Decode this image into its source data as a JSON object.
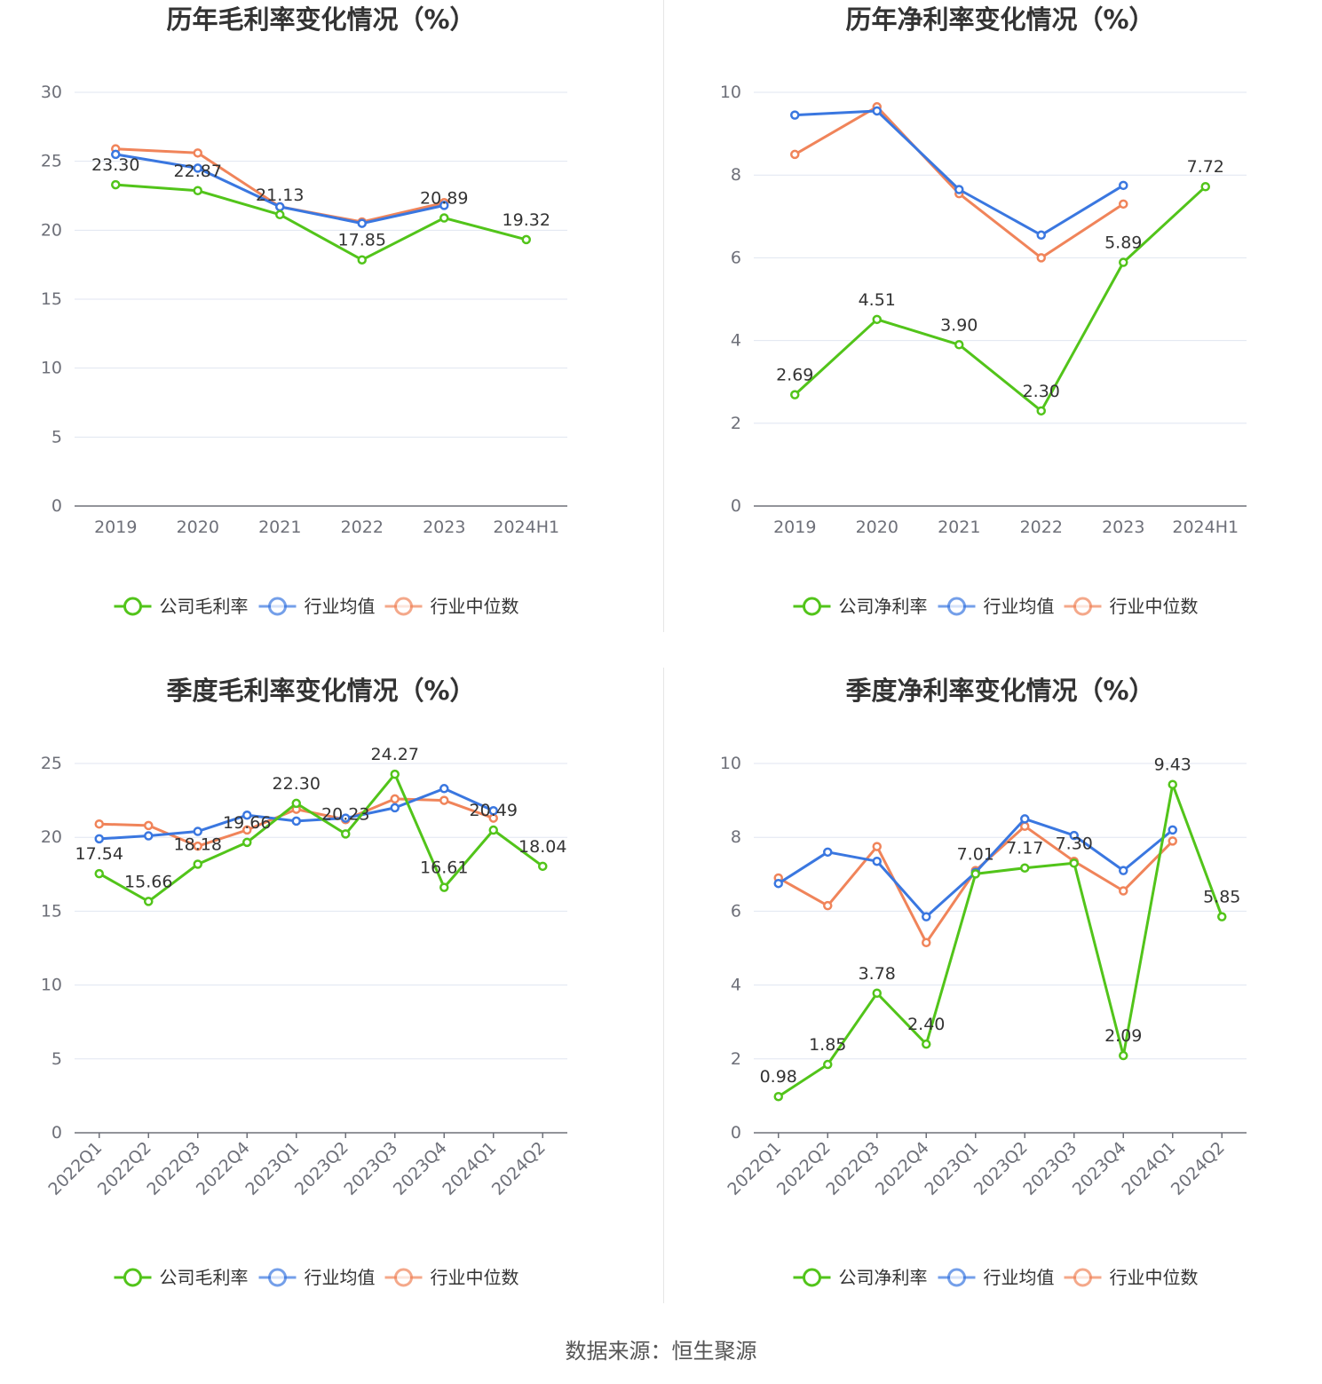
{
  "footer": "数据来源：恒生聚源",
  "colors": {
    "company": "#52c41a",
    "industry_avg": "#3a77e0",
    "industry_median": "#f0845a"
  },
  "chart_data": [
    {
      "type": "line",
      "title": "历年毛利率变化情况（%）",
      "categories": [
        "2019",
        "2020",
        "2021",
        "2022",
        "2023",
        "2024H1"
      ],
      "ylim": [
        0,
        30
      ],
      "yticks": [
        0,
        5,
        10,
        15,
        20,
        25,
        30
      ],
      "series": [
        {
          "name": "公司毛利率",
          "values": [
            23.3,
            22.87,
            21.13,
            17.85,
            20.89,
            19.32
          ]
        },
        {
          "name": "行业均值",
          "values": [
            25.5,
            24.5,
            21.7,
            20.5,
            21.8,
            null
          ]
        },
        {
          "name": "行业中位数",
          "values": [
            25.9,
            25.6,
            21.7,
            20.6,
            22.0,
            null
          ]
        }
      ],
      "data_labels": [
        "23.30",
        "22.87",
        "21.13",
        "17.85",
        "20.89",
        "19.32"
      ],
      "grid": true,
      "legend": "bottom"
    },
    {
      "type": "line",
      "title": "历年净利率变化情况（%）",
      "categories": [
        "2019",
        "2020",
        "2021",
        "2022",
        "2023",
        "2024H1"
      ],
      "ylim": [
        0,
        10
      ],
      "yticks": [
        0,
        2,
        4,
        6,
        8,
        10
      ],
      "series": [
        {
          "name": "公司净利率",
          "values": [
            2.69,
            4.51,
            3.9,
            2.3,
            5.89,
            7.72
          ]
        },
        {
          "name": "行业均值",
          "values": [
            9.45,
            9.55,
            7.65,
            6.55,
            7.75,
            null
          ]
        },
        {
          "name": "行业中位数",
          "values": [
            8.5,
            9.65,
            7.55,
            6.0,
            7.3,
            null
          ]
        }
      ],
      "data_labels": [
        "2.69",
        "4.51",
        "3.90",
        "2.30",
        "5.89",
        "7.72"
      ],
      "grid": true,
      "legend": "bottom"
    },
    {
      "type": "line",
      "title": "季度毛利率变化情况（%）",
      "categories": [
        "2022Q1",
        "2022Q2",
        "2022Q3",
        "2022Q4",
        "2023Q1",
        "2023Q2",
        "2023Q3",
        "2023Q4",
        "2024Q1",
        "2024Q2"
      ],
      "ylim": [
        0,
        25
      ],
      "yticks": [
        0,
        5,
        10,
        15,
        20,
        25
      ],
      "series": [
        {
          "name": "公司毛利率",
          "values": [
            17.54,
            15.66,
            18.18,
            19.66,
            22.3,
            20.23,
            24.27,
            16.61,
            20.49,
            18.04
          ]
        },
        {
          "name": "行业均值",
          "values": [
            19.9,
            20.1,
            20.4,
            21.5,
            21.1,
            21.3,
            22.0,
            23.3,
            21.8,
            null
          ]
        },
        {
          "name": "行业中位数",
          "values": [
            20.9,
            20.8,
            19.4,
            20.5,
            21.9,
            21.2,
            22.6,
            22.5,
            21.3,
            null
          ]
        }
      ],
      "data_labels": [
        "17.54",
        "15.66",
        "18.18",
        "19.66",
        "22.30",
        "20.23",
        "24.27",
        "16.61",
        "20.49",
        "18.04"
      ],
      "grid": true,
      "legend": "bottom"
    },
    {
      "type": "line",
      "title": "季度净利率变化情况（%）",
      "categories": [
        "2022Q1",
        "2022Q2",
        "2022Q3",
        "2022Q4",
        "2023Q1",
        "2023Q2",
        "2023Q3",
        "2023Q4",
        "2024Q1",
        "2024Q2"
      ],
      "ylim": [
        0,
        10
      ],
      "yticks": [
        0,
        2,
        4,
        6,
        8,
        10
      ],
      "series": [
        {
          "name": "公司净利率",
          "values": [
            0.98,
            1.85,
            3.78,
            2.4,
            7.01,
            7.17,
            7.3,
            2.09,
            9.43,
            5.85
          ]
        },
        {
          "name": "行业均值",
          "values": [
            6.75,
            7.6,
            7.35,
            5.85,
            7.05,
            8.5,
            8.05,
            7.1,
            8.2,
            null
          ]
        },
        {
          "name": "行业中位数",
          "values": [
            6.9,
            6.15,
            7.75,
            5.15,
            7.1,
            8.3,
            7.35,
            6.55,
            7.9,
            null
          ]
        }
      ],
      "data_labels": [
        "0.98",
        "1.85",
        "3.78",
        "2.40",
        "7.01",
        "7.17",
        "7.30",
        "2.09",
        "9.43",
        "5.85"
      ],
      "grid": true,
      "legend": "bottom"
    }
  ]
}
